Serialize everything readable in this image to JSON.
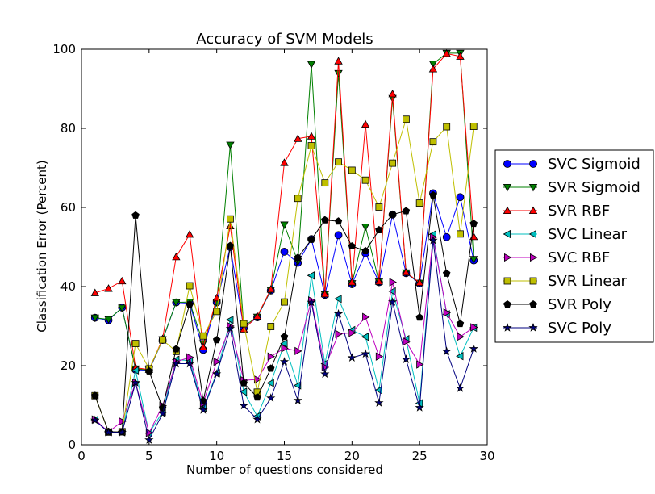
{
  "chart_data": {
    "type": "line",
    "title": "Accuracy of SVM Models",
    "xlabel": "Number of questions considered",
    "ylabel": "Classification Error (Percent)",
    "xlim": [
      0,
      30
    ],
    "ylim": [
      0,
      100
    ],
    "xticks": [
      "0",
      "5",
      "10",
      "15",
      "20",
      "25",
      "30"
    ],
    "yticks": [
      "0",
      "20",
      "40",
      "60",
      "80",
      "100"
    ],
    "grid": false,
    "legend_position": "outside-right",
    "x": [
      1,
      2,
      3,
      4,
      5,
      6,
      7,
      8,
      9,
      10,
      11,
      12,
      13,
      14,
      15,
      16,
      17,
      18,
      19,
      20,
      21,
      22,
      23,
      24,
      25,
      26,
      27,
      28,
      29
    ],
    "series": [
      {
        "name": "SVC Sigmoid",
        "color": "#0000ff",
        "marker": "circle",
        "values": [
          32.1,
          31.5,
          34.7,
          19,
          18.8,
          26.5,
          36,
          35.8,
          24,
          36,
          50,
          29.5,
          32.2,
          39,
          48.8,
          46,
          52,
          37.9,
          53,
          40.6,
          48.4,
          41.1,
          58.2,
          43.4,
          40.8,
          63.6,
          52.5,
          62.6,
          46.6
        ]
      },
      {
        "name": "SVR Sigmoid",
        "color": "#008000",
        "marker": "triangle-down",
        "values": [
          32.1,
          31.7,
          34.6,
          19.2,
          18.9,
          26.6,
          36,
          36.1,
          25.6,
          36,
          75.8,
          30,
          32.3,
          39.1,
          55.6,
          46.3,
          96.2,
          38,
          93.9,
          40.8,
          55.1,
          41.2,
          87.6,
          43.5,
          40.9,
          96.3,
          99,
          99,
          46.9
        ]
      },
      {
        "name": "SVR RBF",
        "color": "#ff0000",
        "marker": "triangle-up",
        "values": [
          38.4,
          39.5,
          41.4,
          19.5,
          19,
          26.8,
          47.5,
          53.2,
          24.7,
          37.1,
          55.3,
          29.2,
          32.5,
          39.3,
          71.3,
          77.4,
          78,
          38.1,
          97,
          41.1,
          81,
          41.3,
          88.7,
          43.6,
          41,
          95,
          98.9,
          98.2,
          52.6
        ]
      },
      {
        "name": "SVC Linear",
        "color": "#00bfbf",
        "marker": "triangle-left",
        "values": [
          6.3,
          3.2,
          3.2,
          18.8,
          2.9,
          8.3,
          21.5,
          21.3,
          9.3,
          18.1,
          31.6,
          13.4,
          7.2,
          15.6,
          25.6,
          15,
          42.8,
          20.5,
          36.9,
          29,
          27.3,
          13.8,
          38.8,
          26.7,
          10.5,
          53.2,
          33,
          22.4,
          29.6
        ]
      },
      {
        "name": "SVC RBF",
        "color": "#bf00bf",
        "marker": "triangle-right",
        "values": [
          6.4,
          3.2,
          5.9,
          15.7,
          3,
          9.9,
          21,
          22.1,
          10.5,
          21,
          30,
          16.3,
          16.5,
          22.3,
          24.4,
          23.7,
          36.5,
          19.6,
          28,
          28.3,
          32.3,
          22.3,
          41.1,
          26.1,
          20.3,
          52.5,
          33.4,
          27.3,
          29.7
        ]
      },
      {
        "name": "SVR Linear",
        "color": "#bfbf00",
        "marker": "square",
        "values": [
          12.4,
          3.2,
          3.3,
          25.6,
          19.2,
          26.5,
          23.6,
          40.2,
          27.5,
          33.7,
          57.1,
          30.6,
          13.3,
          29.9,
          36.1,
          62.3,
          75.6,
          66.2,
          71.5,
          69.4,
          66.9,
          60.1,
          71.2,
          82.3,
          61.1,
          76.6,
          80.4,
          53.3,
          80.5
        ]
      },
      {
        "name": "SVR Poly",
        "color": "#000000",
        "marker": "pentagon",
        "values": [
          12.4,
          3.3,
          3.2,
          58,
          18.6,
          9.3,
          24.2,
          35.5,
          11.1,
          26.5,
          50.3,
          15.6,
          12,
          19.3,
          27.3,
          47.3,
          51.9,
          56.8,
          56.5,
          50.2,
          49,
          54.3,
          58.2,
          59.1,
          32.2,
          63.1,
          43.3,
          30.6,
          55.9
        ]
      },
      {
        "name": "SVC Poly",
        "color": "#00007f",
        "marker": "star",
        "values": [
          6.2,
          3.1,
          3.1,
          15.7,
          1.2,
          7.9,
          20.5,
          20.5,
          8.8,
          17.9,
          29.4,
          9.9,
          6.4,
          11.8,
          21,
          11.2,
          36,
          17.9,
          33.1,
          22,
          23,
          10.6,
          36.1,
          21.6,
          9.4,
          51.7,
          23.6,
          14.3,
          24.3
        ]
      }
    ]
  }
}
